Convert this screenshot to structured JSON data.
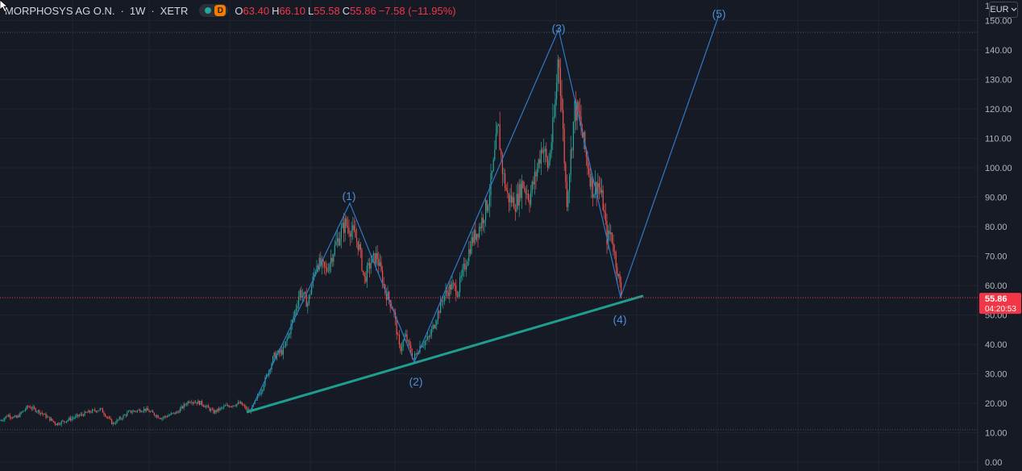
{
  "legend": {
    "symbol": "MORPHOSYS AG O.N.",
    "interval": "1W",
    "exchange": "XETR",
    "badge_label": "D",
    "open_label": "O",
    "open": "63.40",
    "high_label": "H",
    "high": "66.10",
    "low_label": "L",
    "low": "55.58",
    "close_label": "C",
    "close": "55.86",
    "change": "−7.58 (−11.95%)"
  },
  "currency_button": {
    "label": "EUR",
    "icon": "chevron-down-icon"
  },
  "colors": {
    "background": "#161a25",
    "up": "#26a69a",
    "down": "#ef5350",
    "wave": "#3179c6",
    "trend": "#1f9d8f",
    "price_tag": "#f23645"
  },
  "chart_data": {
    "type": "candlestick",
    "y_axis": {
      "ylim": [
        -3,
        157
      ],
      "ticks": [
        0,
        10,
        20,
        30,
        40,
        50,
        60,
        70,
        80,
        90,
        100,
        110,
        120,
        130,
        140,
        150
      ],
      "tick_labels": [
        "0.00",
        "10.00",
        "20.00",
        "30.00",
        "40.00",
        "50.00",
        "60.00",
        "70.00",
        "80.00",
        "90.00",
        "100.00",
        "110.00",
        "120.00",
        "130.00",
        "140.00",
        "150.00"
      ],
      "partial_top_label": "1"
    },
    "last_price": {
      "value": 55.86,
      "label": "55.86",
      "countdown": "04:20:53"
    },
    "horizontal_lines": [
      146,
      11
    ],
    "price_path": [
      [
        0,
        14
      ],
      [
        10,
        16
      ],
      [
        20,
        15
      ],
      [
        35,
        19
      ],
      [
        50,
        17
      ],
      [
        70,
        13
      ],
      [
        90,
        15
      ],
      [
        110,
        17
      ],
      [
        125,
        18
      ],
      [
        140,
        13
      ],
      [
        160,
        17
      ],
      [
        180,
        18
      ],
      [
        200,
        15
      ],
      [
        220,
        17
      ],
      [
        235,
        21
      ],
      [
        250,
        20
      ],
      [
        265,
        17
      ],
      [
        280,
        19
      ],
      [
        298,
        20
      ],
      [
        310,
        17
      ],
      [
        325,
        25
      ],
      [
        340,
        36
      ],
      [
        352,
        38
      ],
      [
        362,
        47
      ],
      [
        372,
        58
      ],
      [
        382,
        54
      ],
      [
        393,
        68
      ],
      [
        405,
        65
      ],
      [
        418,
        75
      ],
      [
        428,
        81
      ],
      [
        436,
        79
      ],
      [
        445,
        74
      ],
      [
        452,
        62
      ],
      [
        460,
        68
      ],
      [
        468,
        70
      ],
      [
        478,
        58
      ],
      [
        488,
        52
      ],
      [
        496,
        38
      ],
      [
        503,
        43
      ],
      [
        513,
        35
      ],
      [
        522,
        40
      ],
      [
        532,
        42
      ],
      [
        540,
        48
      ],
      [
        550,
        56
      ],
      [
        560,
        60
      ],
      [
        568,
        58
      ],
      [
        575,
        65
      ],
      [
        585,
        75
      ],
      [
        595,
        80
      ],
      [
        605,
        88
      ],
      [
        612,
        100
      ],
      [
        618,
        114
      ],
      [
        624,
        98
      ],
      [
        630,
        90
      ],
      [
        640,
        88
      ],
      [
        648,
        95
      ],
      [
        657,
        90
      ],
      [
        665,
        98
      ],
      [
        673,
        108
      ],
      [
        680,
        100
      ],
      [
        688,
        118
      ],
      [
        693,
        140
      ],
      [
        698,
        115
      ],
      [
        703,
        88
      ],
      [
        708,
        104
      ],
      [
        713,
        120
      ],
      [
        718,
        118
      ],
      [
        723,
        110
      ],
      [
        730,
        100
      ],
      [
        736,
        92
      ],
      [
        742,
        95
      ],
      [
        748,
        88
      ],
      [
        753,
        76
      ],
      [
        758,
        78
      ],
      [
        763,
        70
      ],
      [
        769,
        60
      ],
      [
        771,
        56
      ]
    ],
    "wave_labels": [
      "(1)",
      "(2)",
      "(3)",
      "(4)",
      "(5)"
    ],
    "wave_points": [
      {
        "x": 310,
        "y": 17
      },
      {
        "x": 434,
        "y": 88
      },
      {
        "x": 514,
        "y": 34
      },
      {
        "x": 693,
        "y": 147
      },
      {
        "x": 770,
        "y": 56
      },
      {
        "x": 892,
        "y": 152
      }
    ],
    "trendline": {
      "x1": 306,
      "y1": 17,
      "x2": 798,
      "y2": 56.5
    }
  }
}
